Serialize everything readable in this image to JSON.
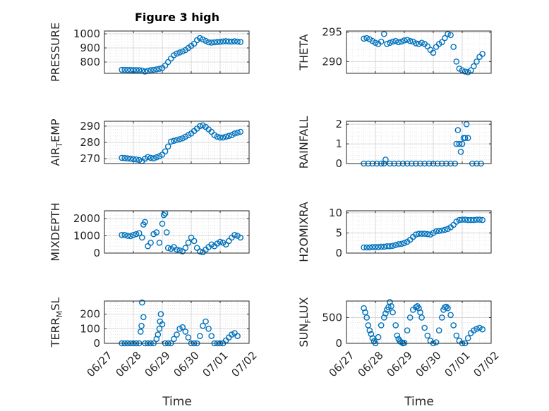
{
  "figure": {
    "title": "Figure 3 high",
    "xlabel": "Time"
  },
  "style": {
    "marker_color": "#0072BD",
    "axis_color": "#262626",
    "grid_color": "#d9d9d9"
  },
  "x_tick_labels": [
    "06/27",
    "06/28",
    "06/29",
    "06/30",
    "07/01",
    "07/02"
  ],
  "chart_data": [
    {
      "type": "scatter",
      "ylabel": "PRESSURE",
      "title": "Figure 3 high",
      "ylim": [
        720,
        1020
      ],
      "yticks": [
        800,
        900,
        1000
      ],
      "ytick_labels": [
        "800",
        "900",
        "1000"
      ],
      "xlim": [
        0,
        5
      ],
      "grid": true,
      "x": [
        0.6,
        0.7,
        0.8,
        0.9,
        1.0,
        1.1,
        1.2,
        1.3,
        1.4,
        1.5,
        1.6,
        1.7,
        1.8,
        1.9,
        2.0,
        2.1,
        2.2,
        2.3,
        2.4,
        2.5,
        2.6,
        2.7,
        2.8,
        2.9,
        3.0,
        3.1,
        3.2,
        3.3,
        3.4,
        3.5,
        3.6,
        3.7,
        3.8,
        3.9,
        4.0,
        4.1,
        4.2,
        4.3,
        4.4,
        4.5,
        4.6,
        4.7
      ],
      "values": [
        745,
        745,
        744,
        744,
        743,
        743,
        742,
        740,
        733,
        738,
        742,
        745,
        748,
        752,
        758,
        775,
        800,
        825,
        848,
        860,
        868,
        875,
        885,
        900,
        915,
        930,
        955,
        970,
        960,
        950,
        940,
        938,
        940,
        942,
        944,
        946,
        948,
        946,
        945,
        947,
        945,
        943
      ]
    },
    {
      "type": "scatter",
      "ylabel": "THETA",
      "ylim": [
        288,
        295.2
      ],
      "yticks": [
        290,
        295
      ],
      "ytick_labels": [
        "290",
        "295"
      ],
      "xlim": [
        0,
        5
      ],
      "grid": true,
      "x": [
        0.6,
        0.7,
        0.8,
        0.9,
        1.0,
        1.1,
        1.2,
        1.3,
        1.4,
        1.5,
        1.6,
        1.7,
        1.8,
        1.9,
        2.0,
        2.1,
        2.2,
        2.3,
        2.4,
        2.5,
        2.6,
        2.7,
        2.8,
        2.9,
        3.0,
        3.1,
        3.2,
        3.3,
        3.4,
        3.5,
        3.6,
        3.7,
        3.8,
        3.9,
        4.0,
        4.1,
        4.2,
        4.3,
        4.4,
        4.5,
        4.6,
        4.7
      ],
      "values": [
        293.9,
        294.0,
        293.8,
        293.5,
        293.2,
        293.0,
        293.4,
        294.7,
        293.0,
        293.2,
        293.4,
        293.5,
        293.3,
        293.4,
        293.6,
        293.7,
        293.5,
        293.4,
        293.1,
        293.0,
        293.2,
        293.0,
        292.6,
        292.0,
        291.5,
        292.5,
        293.0,
        293.3,
        294.0,
        294.7,
        294.5,
        292.5,
        290.0,
        288.8,
        288.5,
        288.3,
        288.2,
        288.5,
        289.2,
        290.0,
        290.8,
        291.3
      ]
    },
    {
      "type": "scatter",
      "ylabel": "AIR_TEMP",
      "ylabel_main": "AIR",
      "ylabel_sub": "T",
      "ylabel_tail": "EMP",
      "ylim": [
        267,
        293
      ],
      "yticks": [
        270,
        280,
        290
      ],
      "ytick_labels": [
        "270",
        "280",
        "290"
      ],
      "xlim": [
        0,
        5
      ],
      "grid": true,
      "x": [
        0.6,
        0.7,
        0.8,
        0.9,
        1.0,
        1.1,
        1.2,
        1.3,
        1.4,
        1.5,
        1.6,
        1.7,
        1.8,
        1.9,
        2.0,
        2.1,
        2.2,
        2.3,
        2.4,
        2.5,
        2.6,
        2.7,
        2.8,
        2.9,
        3.0,
        3.1,
        3.2,
        3.3,
        3.4,
        3.5,
        3.6,
        3.7,
        3.8,
        3.9,
        4.0,
        4.1,
        4.2,
        4.3,
        4.4,
        4.5,
        4.6,
        4.7
      ],
      "values": [
        270.5,
        270.4,
        270.2,
        270.0,
        269.7,
        269.5,
        269.2,
        268.5,
        270.0,
        271.0,
        270.5,
        270.2,
        270.8,
        271.5,
        272.5,
        274.5,
        277.5,
        280.5,
        281.0,
        281.5,
        282.0,
        282.5,
        283.5,
        284.5,
        285.5,
        287.0,
        288.5,
        290.0,
        290.5,
        289.5,
        288.0,
        286.5,
        284.5,
        283.5,
        283.0,
        283.0,
        283.5,
        284.0,
        284.5,
        285.5,
        286.0,
        286.5
      ]
    },
    {
      "type": "scatter",
      "ylabel": "RAINFALL",
      "ylim": [
        0,
        2.15
      ],
      "yticks": [
        0,
        1,
        2
      ],
      "ytick_labels": [
        "0",
        "1",
        "2"
      ],
      "xlim": [
        0,
        5
      ],
      "grid": true,
      "x": [
        0.6,
        0.75,
        0.9,
        1.05,
        1.2,
        1.3,
        1.35,
        1.5,
        1.65,
        1.8,
        1.95,
        2.1,
        2.25,
        2.4,
        2.55,
        2.7,
        2.85,
        3.0,
        3.15,
        3.3,
        3.45,
        3.6,
        3.75,
        3.8,
        3.85,
        3.9,
        3.95,
        4.0,
        4.05,
        4.1,
        4.15,
        4.2,
        4.35,
        4.5,
        4.65
      ],
      "values": [
        0,
        0,
        0,
        0,
        0,
        0,
        0.2,
        0,
        0,
        0,
        0,
        0,
        0,
        0,
        0,
        0,
        0,
        0,
        0,
        0,
        0,
        0,
        0,
        1.0,
        1.7,
        1.0,
        0.6,
        1.0,
        1.3,
        1.3,
        2.0,
        1.3,
        0,
        0,
        0
      ]
    },
    {
      "type": "scatter",
      "ylabel": "MIXDEPTH",
      "ylim": [
        0,
        2450
      ],
      "yticks": [
        0,
        1000,
        2000
      ],
      "ytick_labels": [
        "0",
        "1000",
        "2000"
      ],
      "xlim": [
        0,
        5
      ],
      "grid": true,
      "x": [
        0.6,
        0.7,
        0.8,
        0.9,
        1.0,
        1.1,
        1.2,
        1.3,
        1.35,
        1.4,
        1.5,
        1.6,
        1.7,
        1.8,
        1.9,
        2.0,
        2.05,
        2.1,
        2.15,
        2.2,
        2.3,
        2.4,
        2.5,
        2.6,
        2.7,
        2.8,
        2.9,
        3.0,
        3.1,
        3.2,
        3.3,
        3.4,
        3.5,
        3.6,
        3.7,
        3.8,
        3.9,
        4.0,
        4.1,
        4.2,
        4.3,
        4.4,
        4.5,
        4.6,
        4.7
      ],
      "values": [
        1050,
        1050,
        1000,
        980,
        1050,
        1100,
        1150,
        900,
        1650,
        1800,
        400,
        600,
        1100,
        1200,
        600,
        1700,
        2200,
        2300,
        1200,
        300,
        250,
        350,
        200,
        150,
        100,
        300,
        600,
        900,
        700,
        300,
        100,
        50,
        200,
        350,
        500,
        400,
        550,
        650,
        600,
        500,
        700,
        900,
        1050,
        1000,
        900
      ]
    },
    {
      "type": "scatter",
      "ylabel": "H2OMIXRA",
      "ylim": [
        0,
        10.5
      ],
      "yticks": [
        0,
        5,
        10
      ],
      "ytick_labels": [
        "0",
        "5",
        "10"
      ],
      "xlim": [
        0,
        5
      ],
      "grid": true,
      "x": [
        0.6,
        0.7,
        0.8,
        0.9,
        1.0,
        1.1,
        1.2,
        1.3,
        1.4,
        1.5,
        1.6,
        1.7,
        1.8,
        1.9,
        2.0,
        2.1,
        2.2,
        2.3,
        2.4,
        2.5,
        2.6,
        2.7,
        2.8,
        2.9,
        3.0,
        3.1,
        3.2,
        3.3,
        3.4,
        3.5,
        3.6,
        3.7,
        3.8,
        3.9,
        4.0,
        4.1,
        4.2,
        4.3,
        4.4,
        4.5,
        4.6,
        4.7
      ],
      "values": [
        1.4,
        1.4,
        1.4,
        1.5,
        1.5,
        1.5,
        1.6,
        1.6,
        1.7,
        1.7,
        1.8,
        2.0,
        2.2,
        2.3,
        2.5,
        2.8,
        3.3,
        4.0,
        4.6,
        4.8,
        4.8,
        4.8,
        4.7,
        4.6,
        5.0,
        5.4,
        5.5,
        5.6,
        5.8,
        6.0,
        6.4,
        7.0,
        7.8,
        8.2,
        8.3,
        8.3,
        8.2,
        8.2,
        8.2,
        8.3,
        8.3,
        8.2
      ]
    },
    {
      "type": "scatter",
      "ylabel": "TERR_MSL",
      "ylabel_main": "TERR",
      "ylabel_sub": "M",
      "ylabel_tail": "SL",
      "ylim": [
        0,
        290
      ],
      "yticks": [
        0,
        100,
        200
      ],
      "ytick_labels": [
        "0",
        "100",
        "200"
      ],
      "xlim": [
        0,
        5
      ],
      "grid": true,
      "x": [
        0.6,
        0.7,
        0.8,
        0.9,
        1.0,
        1.1,
        1.2,
        1.25,
        1.28,
        1.3,
        1.35,
        1.4,
        1.5,
        1.6,
        1.7,
        1.8,
        1.85,
        1.9,
        1.92,
        1.95,
        2.0,
        2.1,
        2.2,
        2.3,
        2.4,
        2.5,
        2.6,
        2.7,
        2.8,
        2.9,
        3.0,
        3.1,
        3.2,
        3.3,
        3.4,
        3.5,
        3.6,
        3.7,
        3.8,
        3.9,
        4.0,
        4.1,
        4.2,
        4.3,
        4.4,
        4.5,
        4.6
      ],
      "values": [
        0,
        0,
        0,
        0,
        0,
        0,
        0,
        80,
        120,
        280,
        180,
        0,
        0,
        0,
        0,
        30,
        60,
        100,
        150,
        200,
        130,
        0,
        0,
        0,
        30,
        60,
        100,
        110,
        80,
        40,
        0,
        0,
        0,
        50,
        120,
        150,
        100,
        50,
        0,
        0,
        0,
        0,
        20,
        40,
        60,
        70,
        50
      ]
    },
    {
      "type": "scatter",
      "ylabel": "SUN_FLUX",
      "ylabel_main": "SUN",
      "ylabel_sub": "F",
      "ylabel_tail": "LUX",
      "ylim": [
        0,
        820
      ],
      "yticks": [
        0,
        500
      ],
      "ytick_labels": [
        "0",
        "500"
      ],
      "xlim": [
        0,
        5
      ],
      "grid": true,
      "x": [
        0.6,
        0.65,
        0.7,
        0.75,
        0.8,
        0.85,
        0.9,
        0.95,
        1.0,
        1.1,
        1.2,
        1.3,
        1.35,
        1.4,
        1.45,
        1.5,
        1.55,
        1.6,
        1.7,
        1.75,
        1.8,
        1.85,
        1.9,
        1.95,
        2.0,
        2.1,
        2.2,
        2.3,
        2.4,
        2.45,
        2.5,
        2.55,
        2.6,
        2.7,
        2.8,
        2.9,
        3.0,
        3.1,
        3.2,
        3.3,
        3.35,
        3.4,
        3.45,
        3.5,
        3.6,
        3.7,
        3.8,
        3.9,
        4.0,
        4.1,
        4.2,
        4.3,
        4.4,
        4.5,
        4.6,
        4.7
      ],
      "values": [
        680,
        600,
        500,
        350,
        250,
        180,
        100,
        40,
        0,
        120,
        350,
        500,
        580,
        650,
        700,
        800,
        720,
        600,
        350,
        150,
        80,
        40,
        20,
        0,
        10,
        250,
        500,
        650,
        700,
        720,
        680,
        600,
        500,
        300,
        150,
        50,
        0,
        20,
        250,
        500,
        650,
        700,
        710,
        680,
        550,
        350,
        150,
        50,
        0,
        0,
        100,
        200,
        250,
        280,
        300,
        270
      ]
    }
  ]
}
